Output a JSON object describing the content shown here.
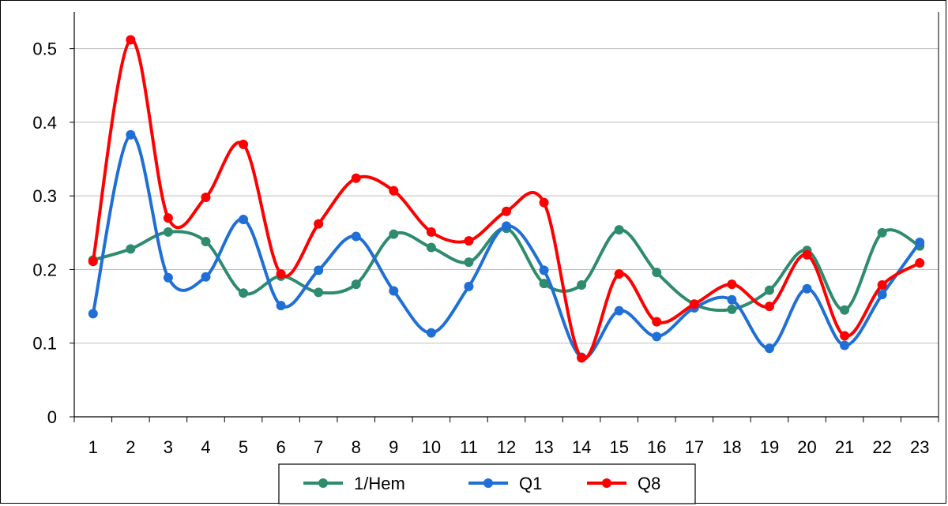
{
  "chart_data": {
    "type": "line",
    "title": "",
    "xlabel": "",
    "ylabel": "",
    "categories": [
      "1",
      "2",
      "3",
      "4",
      "5",
      "6",
      "7",
      "8",
      "9",
      "10",
      "11",
      "12",
      "13",
      "14",
      "15",
      "16",
      "17",
      "18",
      "19",
      "20",
      "21",
      "22",
      "23"
    ],
    "ylim": [
      0,
      0.55
    ],
    "yticks": [
      "0",
      "0.1",
      "0.2",
      "0.3",
      "0.4",
      "0.5"
    ],
    "grid": true,
    "smooth": true,
    "legend_position": "bottom",
    "series": [
      {
        "name": "1/Hem",
        "color": "#2e8b6e",
        "values": [
          0.213,
          0.228,
          0.251,
          0.238,
          0.168,
          0.191,
          0.169,
          0.18,
          0.248,
          0.23,
          0.21,
          0.256,
          0.181,
          0.179,
          0.254,
          0.196,
          0.153,
          0.146,
          0.172,
          0.226,
          0.145,
          0.25,
          0.232
        ]
      },
      {
        "name": "Q1",
        "color": "#1f6fd6",
        "values": [
          0.14,
          0.383,
          0.189,
          0.19,
          0.268,
          0.151,
          0.199,
          0.245,
          0.171,
          0.114,
          0.177,
          0.259,
          0.199,
          0.081,
          0.144,
          0.109,
          0.148,
          0.159,
          0.093,
          0.174,
          0.097,
          0.166,
          0.237
        ]
      },
      {
        "name": "Q8",
        "color": "#ff0000",
        "values": [
          0.211,
          0.512,
          0.27,
          0.298,
          0.37,
          0.194,
          0.262,
          0.324,
          0.307,
          0.251,
          0.239,
          0.279,
          0.291,
          0.08,
          0.194,
          0.129,
          0.153,
          0.18,
          0.15,
          0.22,
          0.11,
          0.179,
          0.209
        ]
      }
    ]
  }
}
